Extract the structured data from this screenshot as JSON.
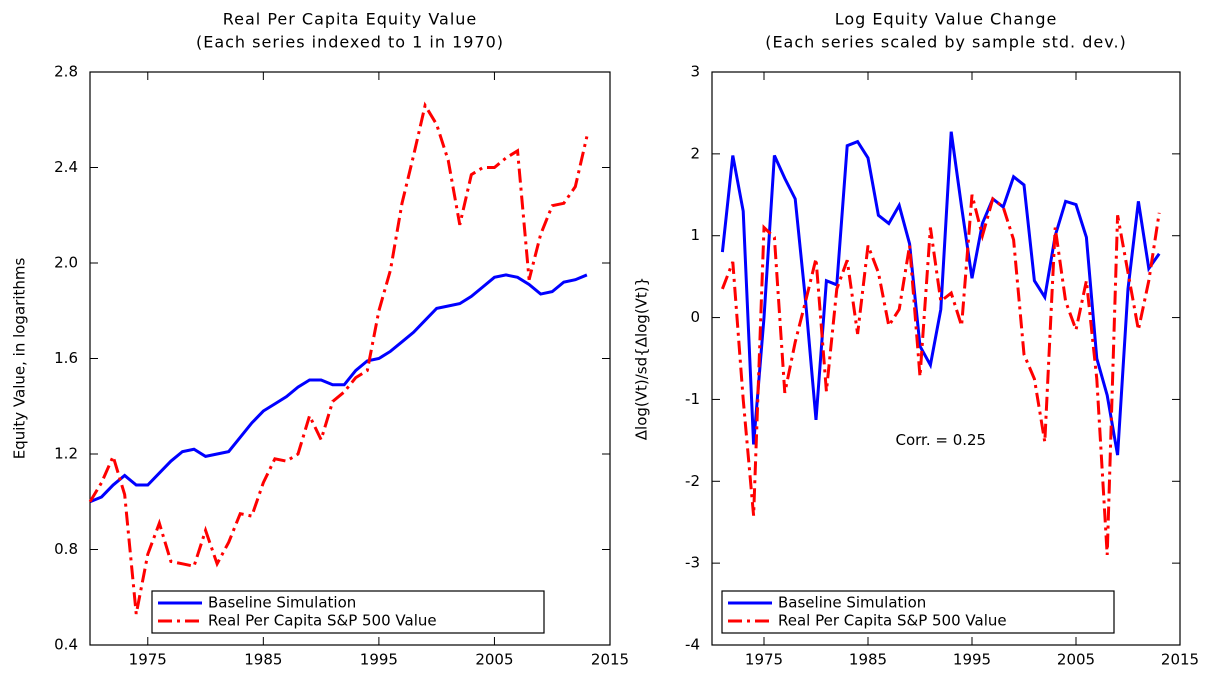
{
  "chart_data": [
    {
      "type": "line",
      "title": "Real Per Capita Equity Value",
      "subtitle": "(Each series indexed to 1 in 1970)",
      "y_label": "Equity Value, in logarithms",
      "x": [
        1970,
        1971,
        1972,
        1973,
        1974,
        1975,
        1976,
        1977,
        1978,
        1979,
        1980,
        1981,
        1982,
        1983,
        1984,
        1985,
        1986,
        1987,
        1988,
        1989,
        1990,
        1991,
        1992,
        1993,
        1994,
        1995,
        1996,
        1997,
        1998,
        1999,
        2000,
        2001,
        2002,
        2003,
        2004,
        2005,
        2006,
        2007,
        2008,
        2009,
        2010,
        2011,
        2012,
        2013
      ],
      "series": [
        {
          "name": "Baseline Simulation",
          "color": "#0000ff",
          "dash": "solid",
          "values": [
            1.0,
            1.02,
            1.07,
            1.11,
            1.07,
            1.07,
            1.12,
            1.17,
            1.21,
            1.22,
            1.19,
            1.2,
            1.21,
            1.27,
            1.33,
            1.38,
            1.41,
            1.44,
            1.48,
            1.51,
            1.51,
            1.49,
            1.49,
            1.55,
            1.59,
            1.6,
            1.63,
            1.67,
            1.71,
            1.76,
            1.81,
            1.82,
            1.83,
            1.86,
            1.9,
            1.94,
            1.95,
            1.94,
            1.91,
            1.87,
            1.88,
            1.92,
            1.93,
            1.95
          ]
        },
        {
          "name": "Real Per Capita S&P 500 Value",
          "color": "#ff0000",
          "dash": "dashdot",
          "values": [
            1.0,
            1.08,
            1.19,
            1.03,
            0.53,
            0.78,
            0.91,
            0.75,
            0.74,
            0.73,
            0.88,
            0.74,
            0.83,
            0.95,
            0.94,
            1.08,
            1.18,
            1.17,
            1.2,
            1.36,
            1.26,
            1.42,
            1.46,
            1.52,
            1.55,
            1.8,
            1.97,
            2.25,
            2.45,
            2.66,
            2.58,
            2.43,
            2.16,
            2.37,
            2.4,
            2.4,
            2.44,
            2.47,
            1.93,
            2.12,
            2.24,
            2.25,
            2.32,
            2.53
          ]
        }
      ],
      "xlim": [
        1970,
        2015
      ],
      "xticks": [
        1975,
        1985,
        1995,
        2005,
        2015
      ],
      "ylim": [
        0.4,
        2.8
      ],
      "yticks": [
        0.4,
        0.8,
        1.2,
        1.6,
        {
          "value": 2,
          "label": "2.0"
        },
        2.4,
        2.8
      ],
      "legend": "lower right"
    },
    {
      "type": "line",
      "title": "Log Equity Value Change",
      "subtitle": "(Each series scaled by sample std. dev.)",
      "y_label": "Δlog(Vt)/sd{Δlog(Vt)}",
      "annotation": "Corr. = 0.25",
      "x": [
        1971,
        1972,
        1973,
        1974,
        1975,
        1976,
        1977,
        1978,
        1979,
        1980,
        1981,
        1982,
        1983,
        1984,
        1985,
        1986,
        1987,
        1988,
        1989,
        1990,
        1991,
        1992,
        1993,
        1994,
        1995,
        1996,
        1997,
        1998,
        1999,
        2000,
        2001,
        2002,
        2003,
        2004,
        2005,
        2006,
        2007,
        2008,
        2009,
        2010,
        2011,
        2012,
        2013
      ],
      "series": [
        {
          "name": "Baseline Simulation",
          "color": "#0000ff",
          "dash": "solid",
          "values": [
            0.8,
            1.98,
            1.3,
            -1.55,
            0.0,
            1.98,
            1.7,
            1.45,
            0.2,
            -1.25,
            0.45,
            0.4,
            2.1,
            2.15,
            1.95,
            1.25,
            1.15,
            1.37,
            0.9,
            -0.35,
            -0.58,
            0.1,
            2.27,
            1.35,
            0.48,
            1.15,
            1.45,
            1.35,
            1.72,
            1.62,
            0.45,
            0.25,
            1.0,
            1.42,
            1.38,
            0.98,
            -0.5,
            -0.95,
            -1.68,
            0.35,
            1.42,
            0.6,
            0.78
          ]
        },
        {
          "name": "Real Per Capita S&P 500 Value",
          "color": "#ff0000",
          "dash": "dashdot",
          "values": [
            0.35,
            0.68,
            -1.0,
            -2.42,
            1.1,
            0.98,
            -0.92,
            -0.3,
            0.2,
            0.72,
            -0.9,
            0.35,
            0.7,
            -0.2,
            0.88,
            0.55,
            -0.1,
            0.1,
            0.88,
            -0.72,
            1.1,
            0.2,
            0.3,
            -0.1,
            1.5,
            1.0,
            1.45,
            1.35,
            0.95,
            -0.45,
            -0.75,
            -1.52,
            1.1,
            0.2,
            -0.15,
            0.45,
            -0.75,
            -2.9,
            1.25,
            0.55,
            -0.15,
            0.45,
            1.28
          ]
        }
      ],
      "xlim": [
        1970,
        2015
      ],
      "xticks": [
        1975,
        1985,
        1995,
        2005,
        2015
      ],
      "ylim": [
        -4,
        3
      ],
      "yticks": [
        -4,
        -3,
        -2,
        -1,
        0,
        1,
        2,
        3
      ],
      "legend": "lower right"
    }
  ]
}
